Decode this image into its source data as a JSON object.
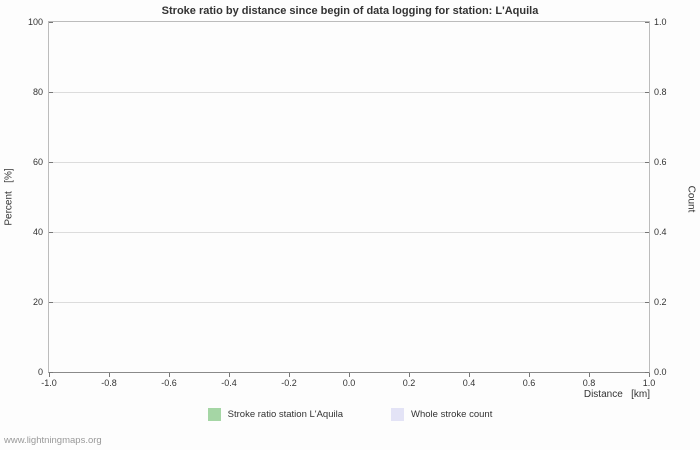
{
  "page": {
    "watermark": "www.lightningmaps.org"
  },
  "chart_data": {
    "type": "line",
    "title": "Stroke ratio by distance since begin of data logging for station: L'Aquila",
    "x_axis": {
      "label": "Distance   [km]",
      "tick_labels": [
        "-1.0",
        "-0.8",
        "-0.6",
        "-0.4",
        "-0.2",
        "0.0",
        "0.2",
        "0.4",
        "0.6",
        "0.8",
        "1.0"
      ],
      "range": [
        -1.0,
        1.0
      ]
    },
    "y_axis_left": {
      "label": "Percent   [%]",
      "tick_labels": [
        "0",
        "20",
        "40",
        "60",
        "80",
        "100"
      ],
      "range": [
        0,
        100
      ]
    },
    "y_axis_right": {
      "label": "Count",
      "tick_labels": [
        "0.0",
        "0.2",
        "0.4",
        "0.6",
        "0.8",
        "1.0"
      ],
      "range": [
        0.0,
        1.0
      ]
    },
    "grid": true,
    "legend_position": "bottom",
    "series": [
      {
        "name": "Stroke ratio station L'Aquila",
        "color": "#a5d6a5",
        "values": []
      },
      {
        "name": "Whole stroke count",
        "color": "#e3e3f6",
        "values": []
      }
    ],
    "colors": {
      "gridline": "#dcdcdc",
      "axis": "#8a8a8a",
      "text": "#333333",
      "watermark": "#999999"
    }
  }
}
